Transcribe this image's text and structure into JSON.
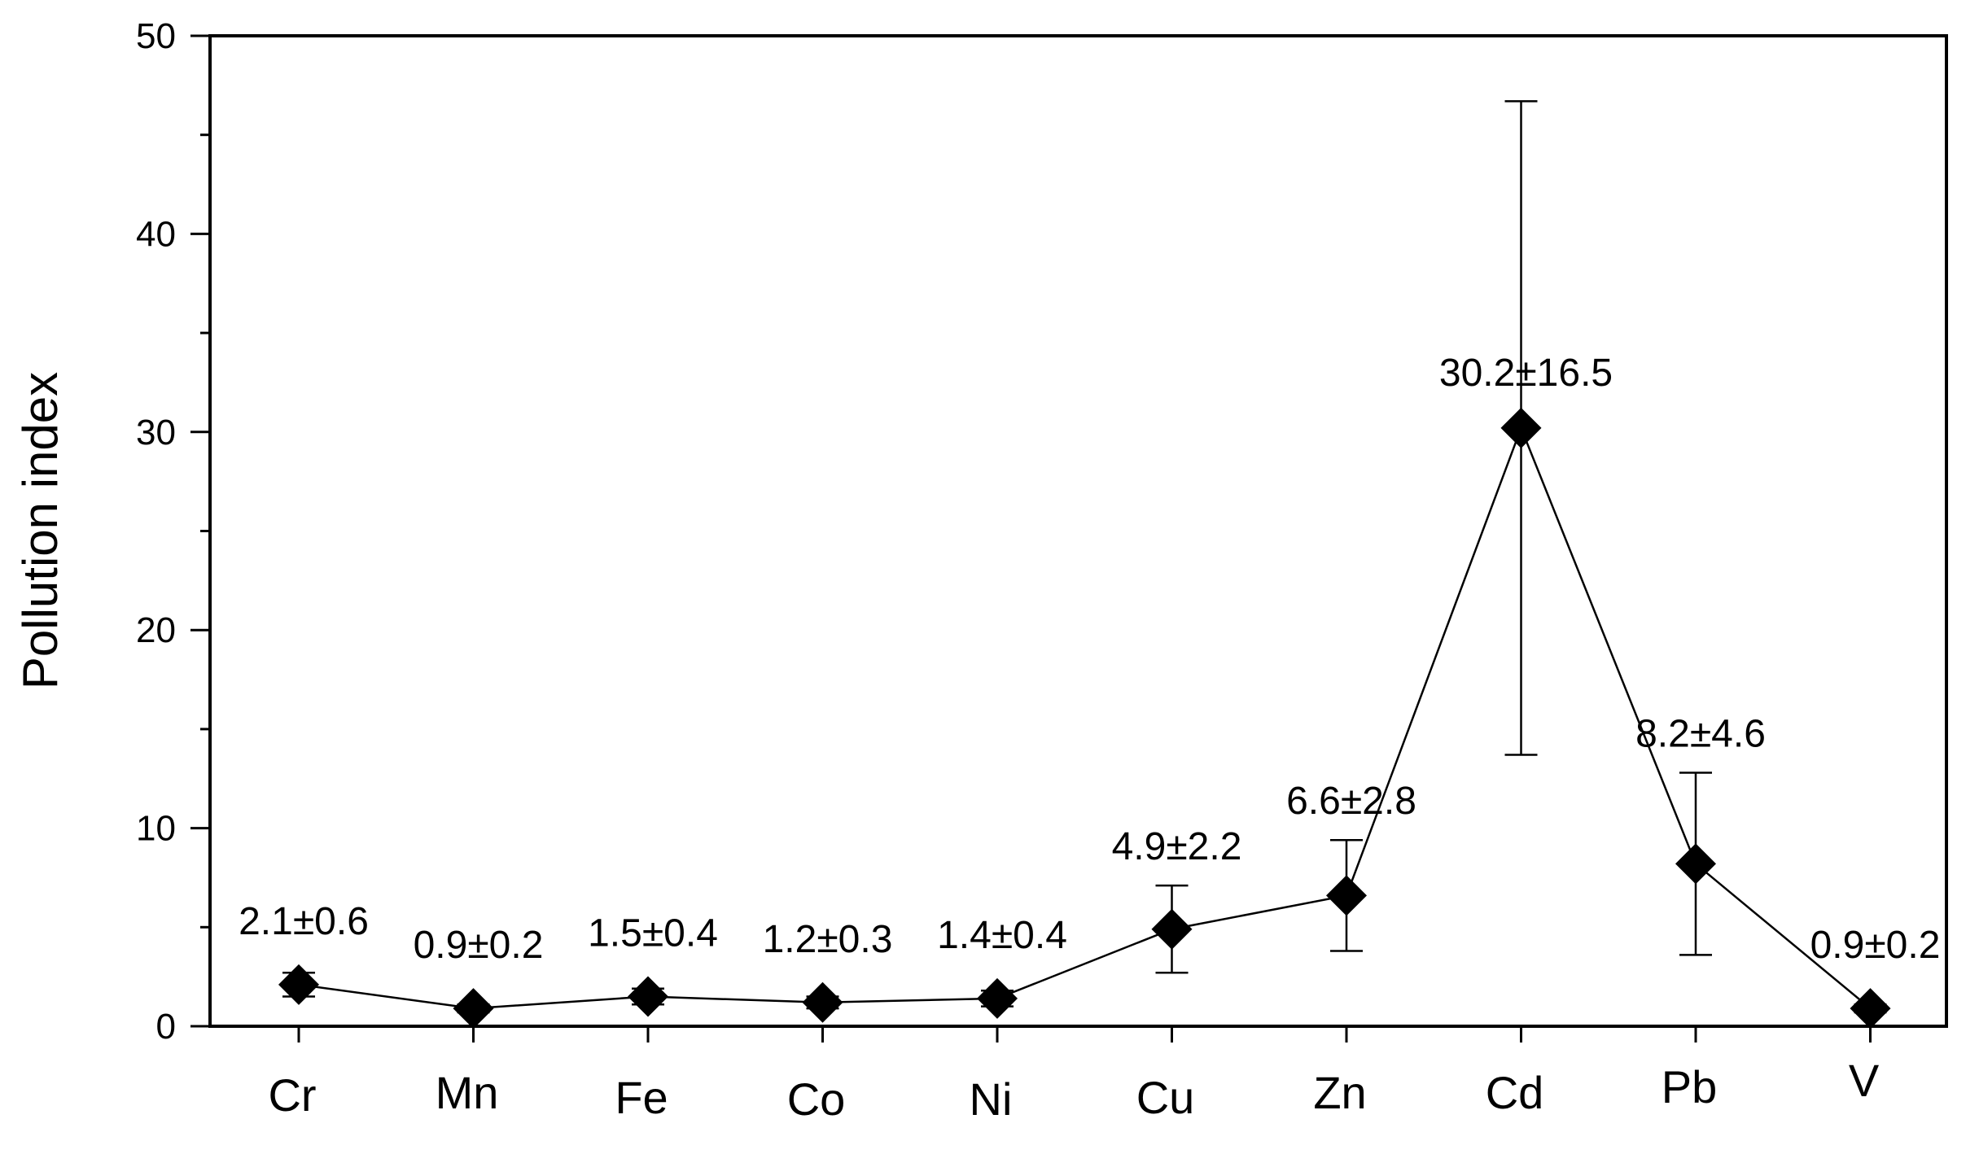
{
  "chart_data": {
    "type": "line",
    "categories": [
      "Cr",
      "Mn",
      "Fe",
      "Co",
      "Ni",
      "Cu",
      "Zn",
      "Cd",
      "Pb",
      "V"
    ],
    "values": [
      2.1,
      0.9,
      1.5,
      1.2,
      1.4,
      4.9,
      6.6,
      30.2,
      8.2,
      0.9
    ],
    "errors": [
      0.6,
      0.2,
      0.4,
      0.3,
      0.4,
      2.2,
      2.8,
      16.5,
      4.6,
      0.2
    ],
    "data_labels": [
      "2.1±0.6",
      "0.9±0.2",
      "1.5±0.4",
      "1.2±0.3",
      "1.4±0.4",
      "4.9±2.2",
      "6.6±2.8",
      "30.2±16.5",
      "8.2±4.6",
      "0.9±0.2"
    ],
    "ylabel": "Pollution index",
    "xlabel": "",
    "ylim": [
      0,
      50
    ],
    "yticks": [
      "0",
      "10",
      "20",
      "30",
      "40",
      "50"
    ],
    "marker": "diamond",
    "grid": false,
    "color": "#000000"
  }
}
